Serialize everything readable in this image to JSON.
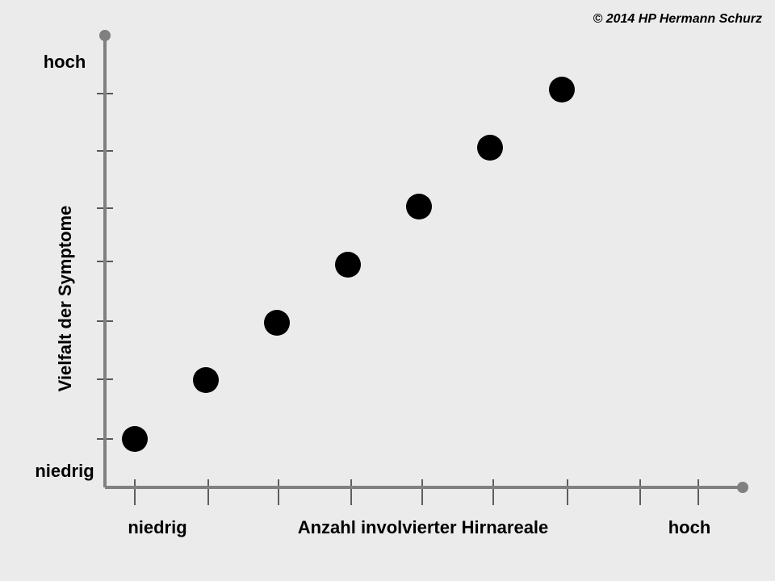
{
  "copyright": "© 2014 HP Hermann Schurz",
  "y_axis": {
    "title": "Vielfalt der Symptome",
    "high": "hoch",
    "low": "niedrig"
  },
  "x_axis": {
    "title": "Anzahl involvierter Hirnareale",
    "high": "hoch",
    "low": "niedrig"
  }
}
